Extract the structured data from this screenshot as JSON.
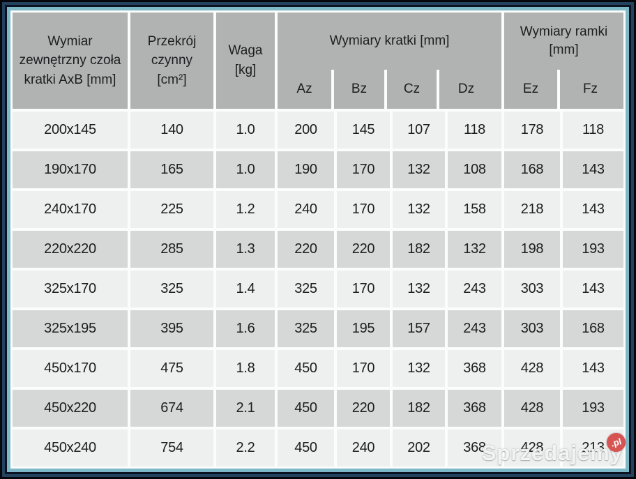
{
  "table": {
    "headers": {
      "col1": "Wymiar\nzewnętrzny czoła\nkratki AxB [mm]",
      "col2": "Przekrój\nczynny\n[cm²]",
      "col3": "Waga\n[kg]",
      "group_kratki": "Wymiary kratki [mm]",
      "group_ramki": "Wymiary ramki\n[mm]"
    },
    "subheaders": [
      "Az",
      "Bz",
      "Cz",
      "Dz",
      "Ez",
      "Fz"
    ],
    "rows": [
      [
        "200x145",
        "140",
        "1.0",
        "200",
        "145",
        "107",
        "118",
        "178",
        "118"
      ],
      [
        "190x170",
        "165",
        "1.0",
        "190",
        "170",
        "132",
        "108",
        "168",
        "143"
      ],
      [
        "240x170",
        "225",
        "1.2",
        "240",
        "170",
        "132",
        "158",
        "218",
        "143"
      ],
      [
        "220x220",
        "285",
        "1.3",
        "220",
        "220",
        "182",
        "132",
        "198",
        "193"
      ],
      [
        "325x170",
        "325",
        "1.4",
        "325",
        "170",
        "132",
        "243",
        "303",
        "143"
      ],
      [
        "325x195",
        "395",
        "1.6",
        "325",
        "195",
        "157",
        "243",
        "303",
        "168"
      ],
      [
        "450x170",
        "475",
        "1.8",
        "450",
        "170",
        "132",
        "368",
        "428",
        "143"
      ],
      [
        "450x220",
        "674",
        "2.1",
        "450",
        "220",
        "182",
        "368",
        "428",
        "193"
      ],
      [
        "450x240",
        "754",
        "2.2",
        "450",
        "240",
        "202",
        "368",
        "428",
        "213"
      ]
    ]
  },
  "watermark": {
    "text": "Sprzedajemy",
    "badge": ".pl"
  },
  "colors": {
    "header_bg": "#b1b3b2",
    "row_light": "#eef0ef",
    "row_dark": "#d6d8d7",
    "grid_white": "#fbfcfc",
    "frame_black": "#05070d",
    "frame_navy": "#23425d",
    "frame_teal": "#7fb9c8",
    "watermark_red": "#d65452",
    "text": "#1d1d1f"
  }
}
